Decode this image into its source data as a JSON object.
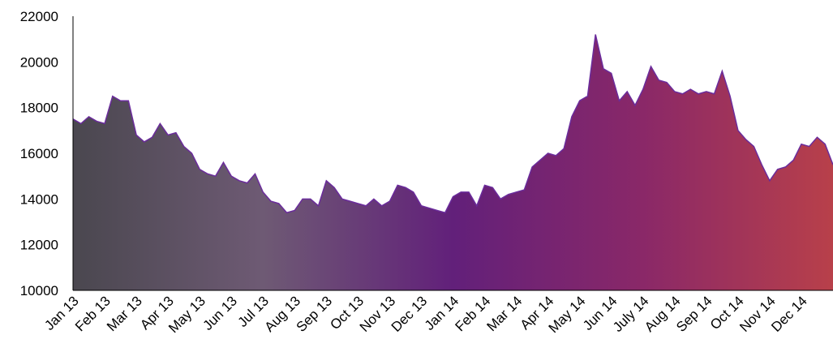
{
  "chart_data": {
    "type": "area",
    "categories": [
      "Jan 13",
      null,
      null,
      null,
      "Feb 13",
      null,
      null,
      null,
      "Mar 13",
      null,
      null,
      null,
      "Apr 13",
      null,
      null,
      null,
      "May 13",
      null,
      null,
      null,
      "Jun 13",
      null,
      null,
      null,
      "Jul 13",
      null,
      null,
      null,
      "Aug 13",
      null,
      null,
      null,
      "Sep 13",
      null,
      null,
      null,
      "Oct 13",
      null,
      null,
      null,
      "Nov 13",
      null,
      null,
      null,
      "Dec 13",
      null,
      null,
      null,
      "Jan 14",
      null,
      null,
      null,
      "Feb 14",
      null,
      null,
      null,
      "Mar 14",
      null,
      null,
      null,
      "Apr 14",
      null,
      null,
      null,
      "May 14",
      null,
      null,
      null,
      "Jun 14",
      null,
      null,
      null,
      "July 14",
      null,
      null,
      null,
      "Aug 14",
      null,
      null,
      null,
      "Sep 14",
      null,
      null,
      null,
      "Oct 14",
      null,
      null,
      null,
      "Nov 14",
      null,
      null,
      null,
      "Dec 14",
      null,
      null,
      null,
      null
    ],
    "values": [
      17500,
      17300,
      17600,
      17400,
      17300,
      18500,
      18300,
      18300,
      16800,
      16500,
      16700,
      17300,
      16800,
      16900,
      16300,
      16000,
      15300,
      15100,
      15000,
      15600,
      15000,
      14800,
      14700,
      15100,
      14300,
      13900,
      13800,
      13400,
      13500,
      14000,
      14000,
      13700,
      14800,
      14500,
      14000,
      13900,
      13800,
      13700,
      14000,
      13700,
      13900,
      14600,
      14500,
      14300,
      13700,
      13600,
      13500,
      13400,
      14100,
      14300,
      14300,
      13700,
      14600,
      14500,
      14000,
      14200,
      14300,
      14400,
      15400,
      15700,
      16000,
      15900,
      16200,
      17600,
      18300,
      18500,
      21200,
      19700,
      19500,
      18300,
      18700,
      18100,
      18800,
      19800,
      19200,
      19100,
      18700,
      18600,
      18800,
      18600,
      18700,
      18600,
      19600,
      18500,
      17000,
      16600,
      16300,
      15500,
      14800,
      15300,
      15400,
      15700,
      16400,
      16300,
      16700,
      16400,
      15500
    ],
    "ylim": [
      10000,
      22000
    ],
    "yticks": [
      10000,
      12000,
      14000,
      16000,
      18000,
      20000,
      22000
    ],
    "line_color": "#6b2c9c",
    "gradient": [
      "#4a474f",
      "#6e5a74",
      "#62207a",
      "#8a2868",
      "#b8404a"
    ]
  }
}
